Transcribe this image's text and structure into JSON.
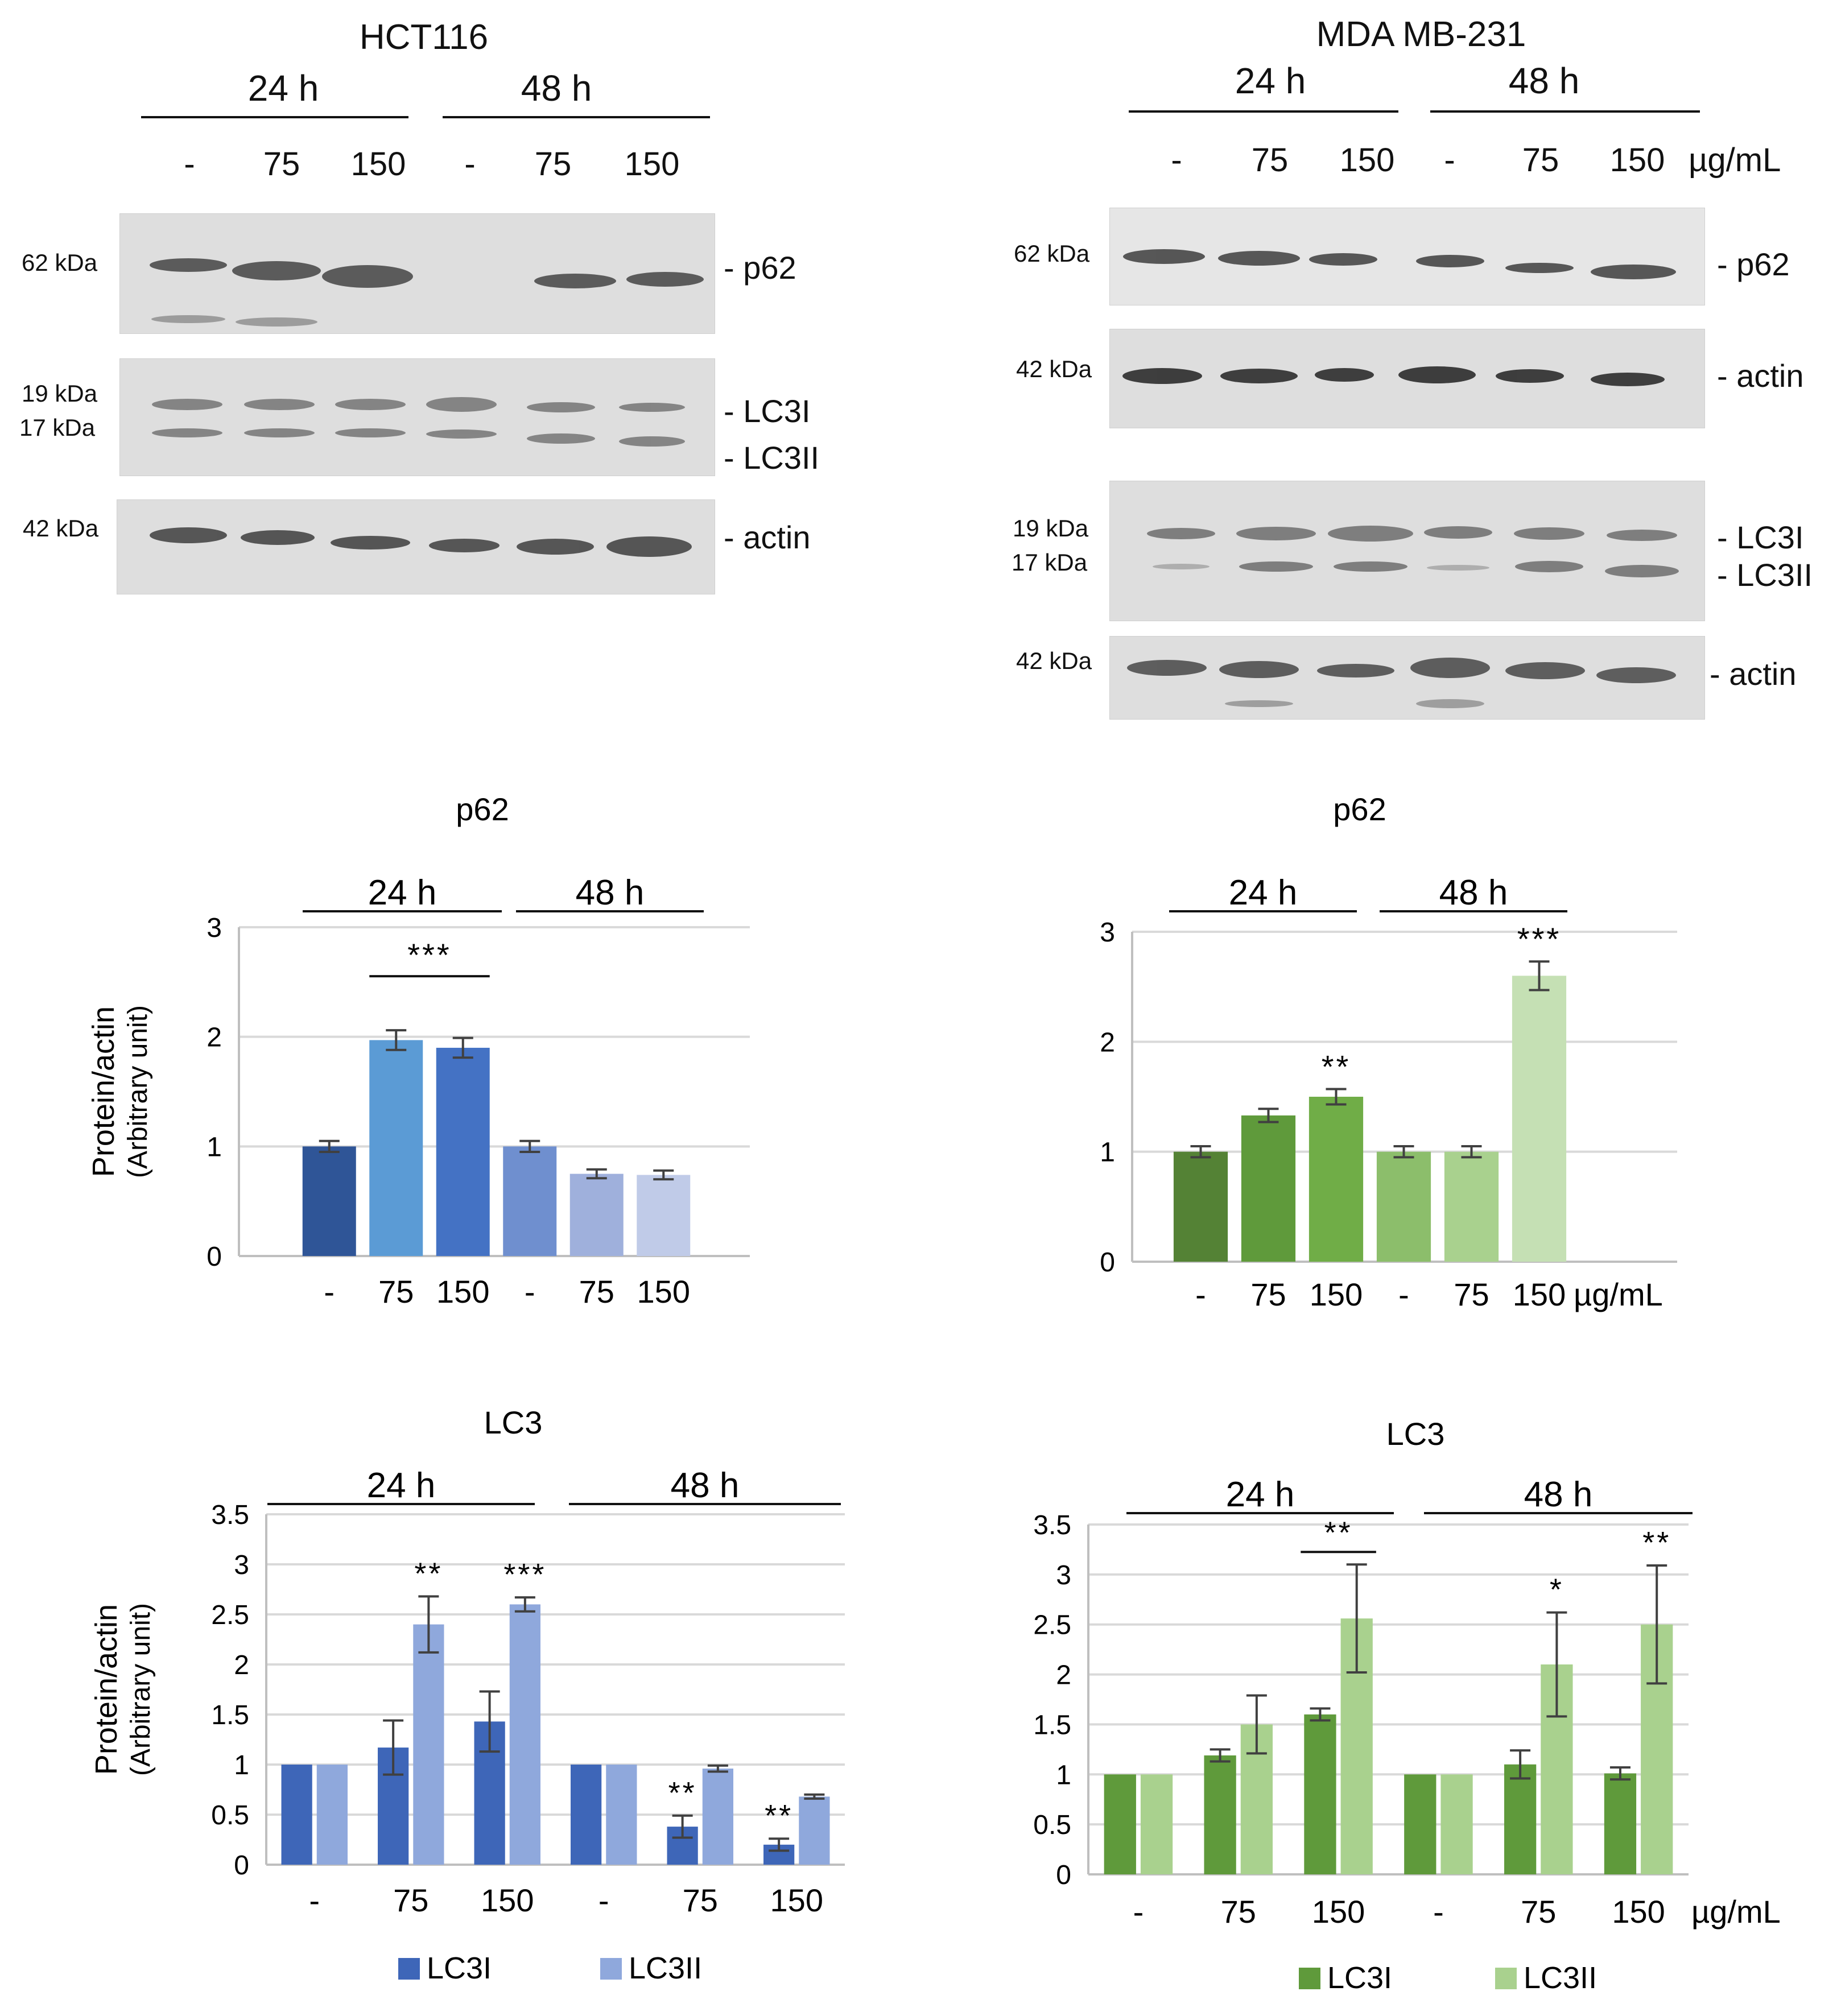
{
  "blots": {
    "left": {
      "title": "HCT116",
      "time_labels": [
        "24 h",
        "48 h"
      ],
      "lane_labels": [
        "-",
        "75",
        "150",
        "-",
        "75",
        "150"
      ],
      "kda_labels": [
        "62 kDa",
        "19 kDa",
        "17 kDa",
        "42 kDa"
      ],
      "band_labels": [
        "- p62",
        "- LC3I",
        "- LC3II",
        "- actin"
      ]
    },
    "right": {
      "title": "MDA MB-231",
      "time_labels": [
        "24 h",
        "48 h"
      ],
      "lane_labels": [
        "-",
        "75",
        "150",
        "-",
        "75",
        "150"
      ],
      "unit": "µg/mL",
      "kda_labels": [
        "62 kDa",
        "42 kDa",
        "19 kDa",
        "17 kDa",
        "42 kDa"
      ],
      "band_labels": [
        "- p62",
        "- actin",
        "- LC3I",
        "- LC3II",
        "- actin"
      ]
    }
  },
  "colors": {
    "hct_p62": [
      "#2f5597",
      "#5b9bd5",
      "#4472c4",
      "#6f8fcf",
      "#9fb0dc",
      "#c0cbe8"
    ],
    "mda_p62": [
      "#548235",
      "#5f9a3b",
      "#70ad47",
      "#8cbe6b",
      "#a9d18e",
      "#c5e0b4"
    ],
    "hct_lc3": [
      "#3e66b8",
      "#8fa8dc"
    ],
    "mda_lc3": [
      "#5f9a3b",
      "#a9d18e"
    ],
    "grid": "#d9d9d9",
    "axis": "#bfbfbf",
    "err": "#404040"
  },
  "chart_data": [
    {
      "id": "hct-p62",
      "type": "bar",
      "title": "p62",
      "ylabel": "Protein/actin",
      "ylabel2": "(Arbitrary unit)",
      "time_labels": [
        "24 h",
        "48 h"
      ],
      "categories": [
        "-",
        "75",
        "150",
        "-",
        "75",
        "150"
      ],
      "values": [
        1.0,
        1.97,
        1.9,
        1.0,
        0.75,
        0.74
      ],
      "errors": [
        0.05,
        0.09,
        0.09,
        0.05,
        0.04,
        0.04
      ],
      "ylim": [
        0,
        3
      ],
      "yticks": [
        "0",
        "1",
        "2",
        "3"
      ],
      "annotations": [
        {
          "text": "***",
          "span": [
            1,
            2
          ]
        }
      ]
    },
    {
      "id": "mda-p62",
      "type": "bar",
      "title": "p62",
      "time_labels": [
        "24 h",
        "48 h"
      ],
      "categories": [
        "-",
        "75",
        "150",
        "-",
        "75",
        "150"
      ],
      "unit": "µg/mL",
      "values": [
        1.0,
        1.33,
        1.5,
        1.0,
        1.0,
        2.6
      ],
      "errors": [
        0.05,
        0.06,
        0.07,
        0.05,
        0.05,
        0.13
      ],
      "ylim": [
        0,
        3
      ],
      "yticks": [
        "0",
        "1",
        "2",
        "3"
      ],
      "annotations": [
        {
          "text": "**",
          "bar": 2
        },
        {
          "text": "***",
          "bar": 5
        }
      ]
    },
    {
      "id": "hct-lc3",
      "type": "bar",
      "title": "LC3",
      "ylabel": "Protein/actin",
      "ylabel2": "(Arbitrary unit)",
      "time_labels": [
        "24 h",
        "48 h"
      ],
      "categories": [
        "-",
        "75",
        "150",
        "-",
        "75",
        "150"
      ],
      "series": [
        {
          "name": "LC3I",
          "values": [
            1.0,
            1.17,
            1.43,
            1.0,
            0.38,
            0.2
          ],
          "errors": [
            0,
            0.27,
            0.3,
            0,
            0.11,
            0.06
          ]
        },
        {
          "name": "LC3II",
          "values": [
            1.0,
            2.4,
            2.6,
            1.0,
            0.96,
            0.68
          ],
          "errors": [
            0,
            0.28,
            0.07,
            0,
            0.03,
            0.02
          ]
        }
      ],
      "ylim": [
        0,
        3.5
      ],
      "yticks": [
        "0",
        "0.5",
        "1",
        "1.5",
        "2",
        "2.5",
        "3",
        "3.5"
      ],
      "annotations": [
        {
          "text": "**",
          "group": 1,
          "series": 1
        },
        {
          "text": "***",
          "group": 2,
          "series": 1
        },
        {
          "text": "**",
          "group": 4,
          "series": 0
        },
        {
          "text": "**",
          "group": 5,
          "series": 0
        }
      ]
    },
    {
      "id": "mda-lc3",
      "type": "bar",
      "title": "LC3",
      "time_labels": [
        "24 h",
        "48 h"
      ],
      "categories": [
        "-",
        "75",
        "150",
        "-",
        "75",
        "150"
      ],
      "unit": "µg/mL",
      "series": [
        {
          "name": "LC3I",
          "values": [
            1.0,
            1.19,
            1.6,
            1.0,
            1.1,
            1.01
          ],
          "errors": [
            0,
            0.06,
            0.06,
            0,
            0.14,
            0.06
          ]
        },
        {
          "name": "LC3II",
          "values": [
            1.0,
            1.5,
            2.56,
            1.0,
            2.1,
            2.5
          ],
          "errors": [
            0,
            0.29,
            0.54,
            0,
            0.52,
            0.59
          ]
        }
      ],
      "ylim": [
        0,
        3.5
      ],
      "yticks": [
        "0",
        "0.5",
        "1",
        "1.5",
        "2",
        "2.5",
        "3",
        "3.5"
      ],
      "annotations": [
        {
          "text": "**",
          "span_group": [
            2,
            2
          ]
        },
        {
          "text": "*",
          "group": 4,
          "series": 1
        },
        {
          "text": "**",
          "group": 5,
          "series": 1
        }
      ]
    }
  ]
}
